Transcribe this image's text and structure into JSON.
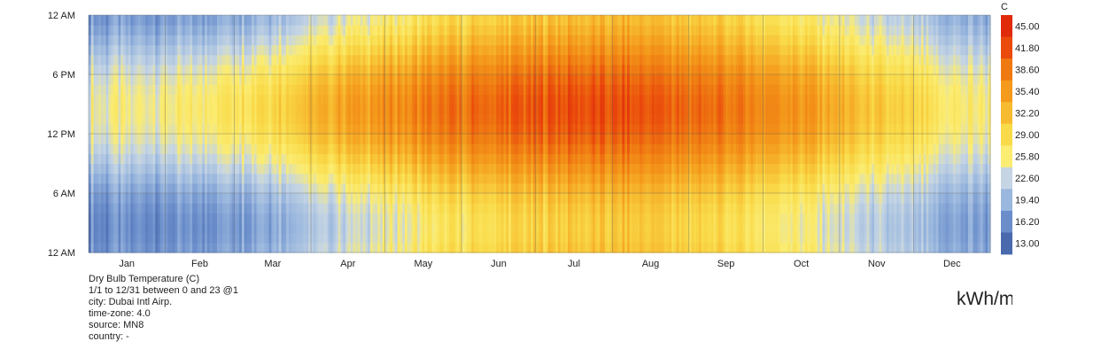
{
  "chart_data": {
    "type": "heatmap",
    "title": "Dry Bulb Temperature (C)",
    "x_axis": {
      "categories": [
        "Jan",
        "Feb",
        "Mar",
        "Apr",
        "May",
        "Jun",
        "Jul",
        "Aug",
        "Sep",
        "Oct",
        "Nov",
        "Dec"
      ],
      "range": [
        "1/1",
        "12/31"
      ]
    },
    "y_axis": {
      "tick_labels": [
        "12 AM",
        "6 PM",
        "12 PM",
        "6 AM",
        "12 AM"
      ],
      "range_hours": [
        0,
        23
      ]
    },
    "legend": {
      "unit": "C",
      "placement": "right",
      "ticks": [
        "45.00",
        "41.80",
        "38.60",
        "35.40",
        "32.20",
        "29.00",
        "25.80",
        "22.60",
        "19.40",
        "16.20",
        "13.00"
      ],
      "colors": [
        "#e02a0a",
        "#ea4a0c",
        "#ef7a12",
        "#f49a1c",
        "#f7bb30",
        "#f9db4a",
        "#fbec72",
        "#c5d5e4",
        "#9ab7de",
        "#6b8ecb",
        "#4a6aad"
      ]
    },
    "monthly_values": {
      "months": [
        "Jan",
        "Feb",
        "Mar",
        "Apr",
        "May",
        "Jun",
        "Jul",
        "Aug",
        "Sep",
        "Oct",
        "Nov",
        "Dec"
      ],
      "night_min_c": [
        16,
        16.5,
        19,
        22.5,
        26,
        28.5,
        30.5,
        30.5,
        28.5,
        25.5,
        21.5,
        17.5
      ],
      "afternoon_max_c": [
        25,
        26.5,
        30,
        35,
        38,
        40,
        42,
        41,
        39,
        36,
        31,
        26
      ]
    },
    "grid": true
  },
  "info": {
    "lines": [
      "Dry Bulb Temperature (C)",
      "1/1 to 12/31 between 0 and 23 @1",
      "city: Dubai Intl Airp.",
      "time-zone: 4.0",
      "source: MN8",
      "country: -"
    ],
    "unit_note": "kWh/m"
  }
}
